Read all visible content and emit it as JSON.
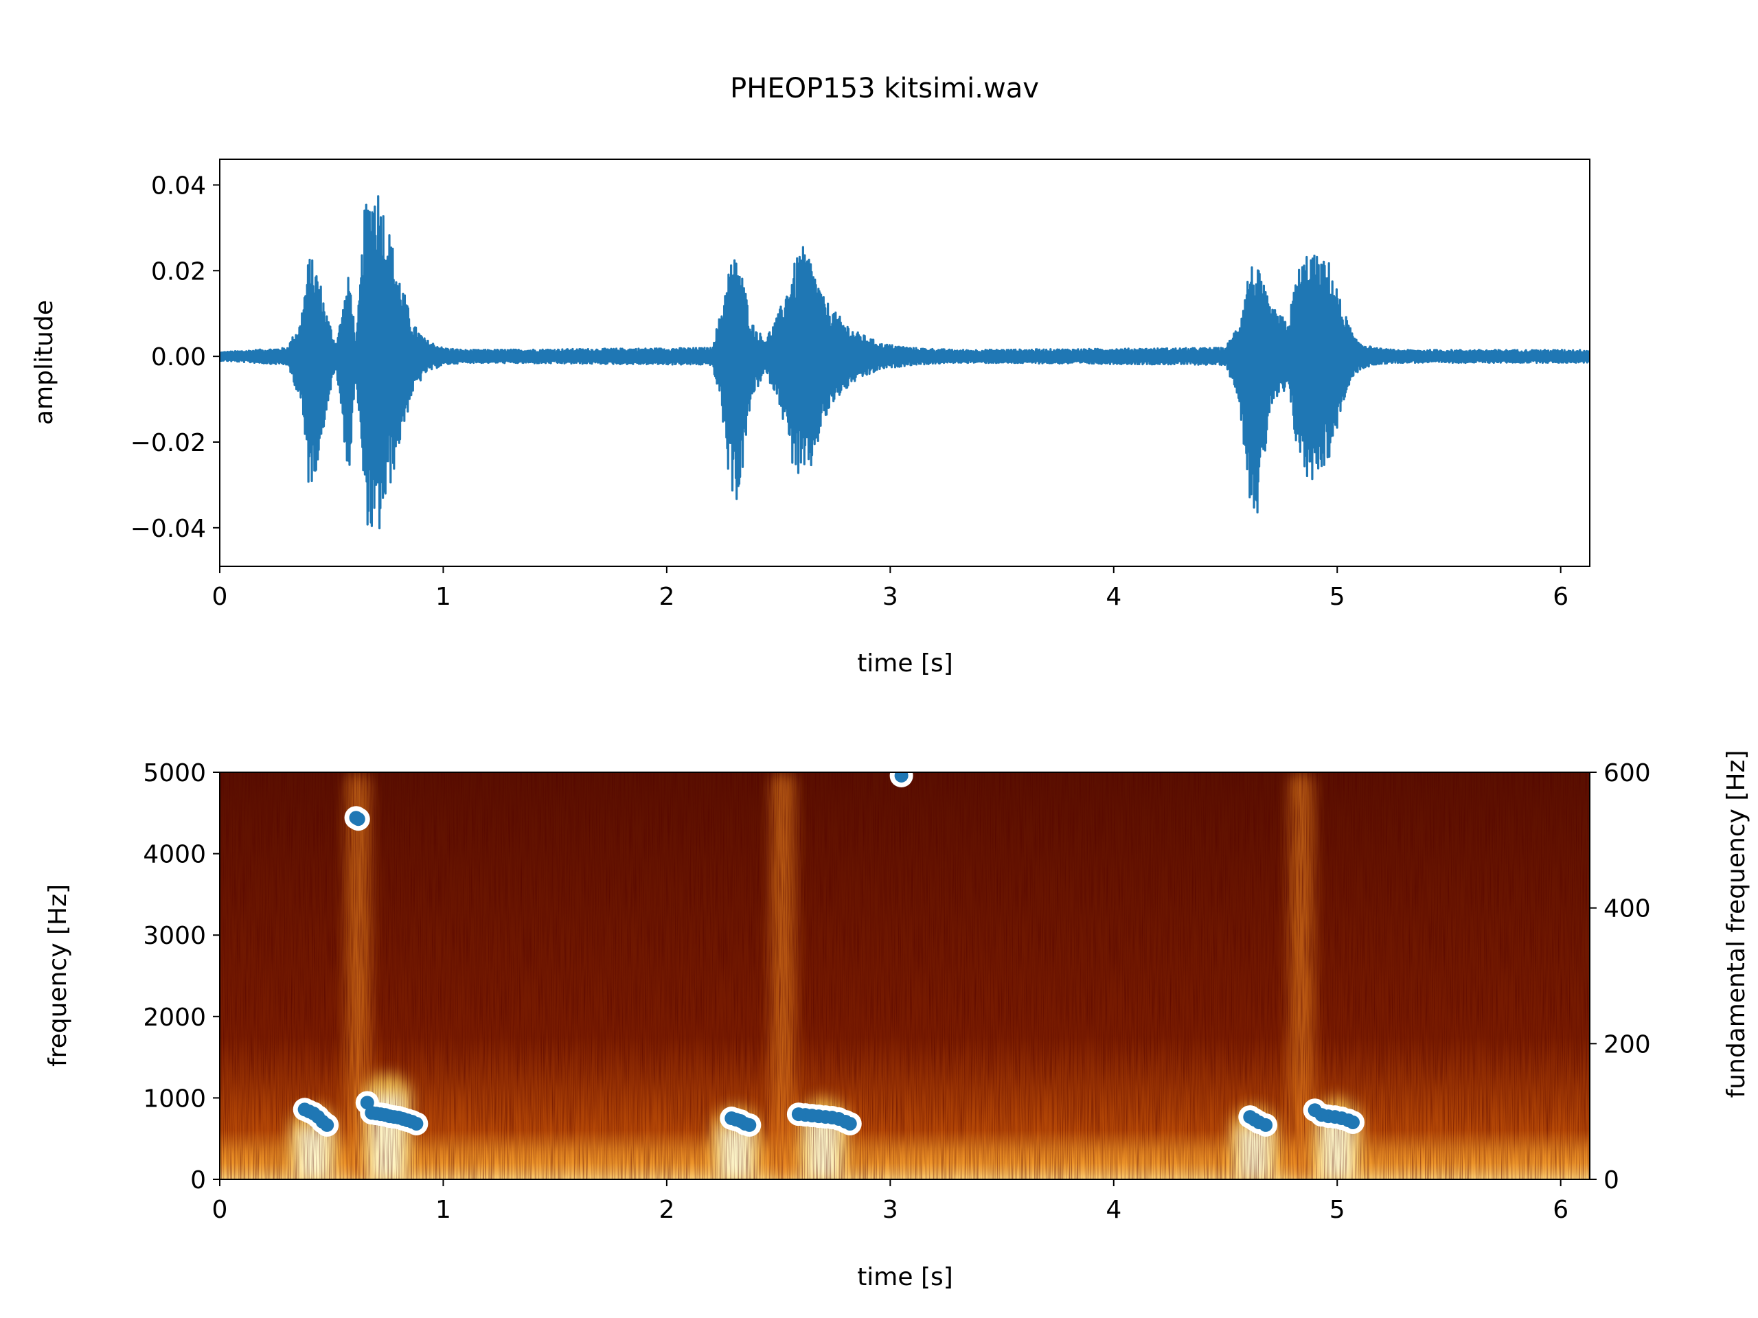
{
  "figure": {
    "title": "PHEOP153 kitsimi.wav"
  },
  "chart_data": [
    {
      "type": "line",
      "name": "waveform",
      "xlabel": "time [s]",
      "ylabel": "amplitude",
      "xlim": [
        0,
        6.13
      ],
      "ylim": [
        -0.049,
        0.046
      ],
      "xticks": [
        0,
        1,
        2,
        3,
        4,
        5,
        6
      ],
      "xtick_labels": [
        "0",
        "1",
        "2",
        "3",
        "4",
        "5",
        "6"
      ],
      "yticks": [
        0.04,
        0.02,
        0.0,
        -0.02,
        -0.04
      ],
      "ytick_labels": [
        "0.04",
        "0.02",
        "0.00",
        "−0.02",
        "−0.04"
      ],
      "grid": false,
      "line_color": "#1f77b4",
      "envelope": {
        "note": "peak amplitude envelope per time",
        "times": [
          0.0,
          0.3,
          0.36,
          0.4,
          0.44,
          0.48,
          0.52,
          0.58,
          0.61,
          0.65,
          0.7,
          0.74,
          0.8,
          0.86,
          0.92,
          1.0,
          1.1,
          2.2,
          2.24,
          2.28,
          2.32,
          2.38,
          2.44,
          2.5,
          2.56,
          2.6,
          2.64,
          2.7,
          2.76,
          2.84,
          2.96,
          3.1,
          3.3,
          4.5,
          4.56,
          4.61,
          4.65,
          4.7,
          4.78,
          4.82,
          4.87,
          4.92,
          4.97,
          5.02,
          5.08,
          5.16,
          5.26,
          6.13
        ],
        "upper": [
          0.001,
          0.002,
          0.008,
          0.024,
          0.02,
          0.01,
          0.003,
          0.02,
          0.003,
          0.036,
          0.042,
          0.034,
          0.02,
          0.008,
          0.004,
          0.002,
          0.0015,
          0.002,
          0.01,
          0.022,
          0.024,
          0.008,
          0.004,
          0.01,
          0.02,
          0.026,
          0.024,
          0.014,
          0.01,
          0.006,
          0.003,
          0.002,
          0.0015,
          0.002,
          0.008,
          0.022,
          0.02,
          0.012,
          0.008,
          0.02,
          0.025,
          0.023,
          0.022,
          0.012,
          0.004,
          0.002,
          0.0015,
          0.0015
        ],
        "lower": [
          -0.001,
          -0.002,
          -0.01,
          -0.032,
          -0.025,
          -0.012,
          -0.003,
          -0.03,
          -0.004,
          -0.038,
          -0.045,
          -0.036,
          -0.022,
          -0.009,
          -0.004,
          -0.002,
          -0.0015,
          -0.002,
          -0.01,
          -0.03,
          -0.035,
          -0.01,
          -0.004,
          -0.01,
          -0.025,
          -0.03,
          -0.028,
          -0.016,
          -0.01,
          -0.006,
          -0.003,
          -0.002,
          -0.0015,
          -0.002,
          -0.01,
          -0.034,
          -0.038,
          -0.012,
          -0.008,
          -0.022,
          -0.03,
          -0.027,
          -0.024,
          -0.012,
          -0.004,
          -0.002,
          -0.0015,
          -0.0015
        ]
      }
    },
    {
      "type": "heatmap",
      "name": "spectrogram",
      "xlabel": "time [s]",
      "ylabel": "frequency [Hz]",
      "y2label": "fundamental frequency [Hz]",
      "xlim": [
        0,
        6.13
      ],
      "ylim": [
        0,
        5000
      ],
      "y2lim": [
        0,
        600
      ],
      "xticks": [
        0,
        1,
        2,
        3,
        4,
        5,
        6
      ],
      "xtick_labels": [
        "0",
        "1",
        "2",
        "3",
        "4",
        "5",
        "6"
      ],
      "yticks": [
        0,
        1000,
        2000,
        3000,
        4000,
        5000
      ],
      "ytick_labels": [
        "0",
        "1000",
        "2000",
        "3000",
        "4000",
        "5000"
      ],
      "y2ticks": [
        0,
        200,
        400,
        600
      ],
      "y2tick_labels": [
        "0",
        "200",
        "400",
        "600"
      ],
      "colormap": [
        "#1a0000",
        "#5a0d00",
        "#a33400",
        "#e6801a",
        "#ffd65c",
        "#ffffe0"
      ],
      "bright_regions": [
        {
          "t": 0.42,
          "f_max": 900,
          "level": 0.95
        },
        {
          "t": 0.62,
          "f_max": 5000,
          "level": 0.8
        },
        {
          "t": 0.75,
          "f_max": 1300,
          "level": 0.98
        },
        {
          "t": 2.31,
          "f_max": 900,
          "level": 0.9
        },
        {
          "t": 2.52,
          "f_max": 5000,
          "level": 0.8
        },
        {
          "t": 2.7,
          "f_max": 1000,
          "level": 0.95
        },
        {
          "t": 4.63,
          "f_max": 900,
          "level": 0.9
        },
        {
          "t": 4.84,
          "f_max": 5000,
          "level": 0.8
        },
        {
          "t": 5.0,
          "f_max": 1000,
          "level": 0.95
        }
      ],
      "f0_series": {
        "name": "fundamental frequency",
        "color": "#1f77b4",
        "outline": "#ffffff",
        "points": [
          [
            0.38,
            103
          ],
          [
            0.4,
            100
          ],
          [
            0.42,
            97
          ],
          [
            0.44,
            92
          ],
          [
            0.46,
            85
          ],
          [
            0.48,
            80
          ],
          [
            0.61,
            533
          ],
          [
            0.62,
            531
          ],
          [
            0.66,
            113
          ],
          [
            0.68,
            98
          ],
          [
            0.7,
            97
          ],
          [
            0.72,
            96
          ],
          [
            0.74,
            95
          ],
          [
            0.76,
            93
          ],
          [
            0.78,
            92
          ],
          [
            0.8,
            91
          ],
          [
            0.82,
            89
          ],
          [
            0.84,
            87
          ],
          [
            0.86,
            85
          ],
          [
            0.88,
            82
          ],
          [
            2.29,
            90
          ],
          [
            2.31,
            88
          ],
          [
            2.33,
            86
          ],
          [
            2.35,
            82
          ],
          [
            2.37,
            80
          ],
          [
            2.59,
            96
          ],
          [
            2.62,
            95
          ],
          [
            2.65,
            94
          ],
          [
            2.68,
            93
          ],
          [
            2.71,
            92
          ],
          [
            2.74,
            91
          ],
          [
            2.77,
            89
          ],
          [
            2.8,
            85
          ],
          [
            2.82,
            82
          ],
          [
            3.05,
            595
          ],
          [
            4.61,
            92
          ],
          [
            4.63,
            88
          ],
          [
            4.65,
            84
          ],
          [
            4.68,
            80
          ],
          [
            4.9,
            102
          ],
          [
            4.93,
            95
          ],
          [
            4.96,
            93
          ],
          [
            4.99,
            92
          ],
          [
            5.02,
            90
          ],
          [
            5.05,
            87
          ],
          [
            5.07,
            84
          ]
        ]
      }
    }
  ]
}
